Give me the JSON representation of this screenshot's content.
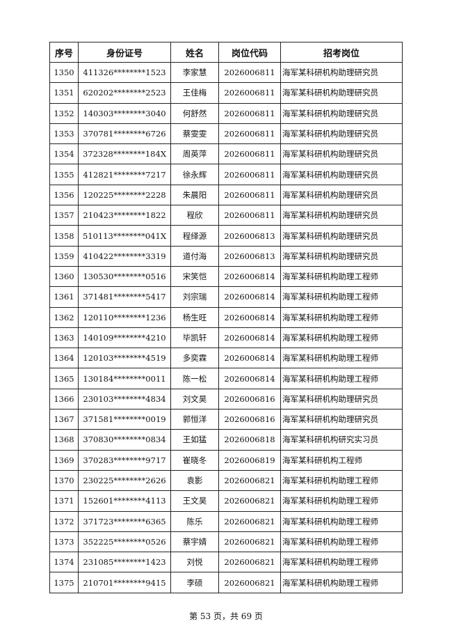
{
  "table": {
    "headers": [
      "序号",
      "身份证号",
      "姓名",
      "岗位代码",
      "招考岗位"
    ],
    "rows": [
      [
        "1350",
        "411326********1523",
        "李家慧",
        "2026006811",
        "海军某科研机构助理研究员"
      ],
      [
        "1351",
        "620202********2523",
        "王佳梅",
        "2026006811",
        "海军某科研机构助理研究员"
      ],
      [
        "1352",
        "140303********3040",
        "何舒然",
        "2026006811",
        "海军某科研机构助理研究员"
      ],
      [
        "1353",
        "370781********6726",
        "蔡雯雯",
        "2026006811",
        "海军某科研机构助理研究员"
      ],
      [
        "1354",
        "372328********184X",
        "周英萍",
        "2026006811",
        "海军某科研机构助理研究员"
      ],
      [
        "1355",
        "412821********7217",
        "徐永辉",
        "2026006811",
        "海军某科研机构助理研究员"
      ],
      [
        "1356",
        "120225********2228",
        "朱晨阳",
        "2026006811",
        "海军某科研机构助理研究员"
      ],
      [
        "1357",
        "210423********1822",
        "程欣",
        "2026006811",
        "海军某科研机构助理研究员"
      ],
      [
        "1358",
        "510113********041X",
        "程绎源",
        "2026006813",
        "海军某科研机构助理研究员"
      ],
      [
        "1359",
        "410422********3319",
        "道付海",
        "2026006813",
        "海军某科研机构助理研究员"
      ],
      [
        "1360",
        "130530********0516",
        "宋笑恺",
        "2026006814",
        "海军某科研机构助理工程师"
      ],
      [
        "1361",
        "371481********5417",
        "刘宗瑞",
        "2026006814",
        "海军某科研机构助理工程师"
      ],
      [
        "1362",
        "120110********1236",
        "杨生旺",
        "2026006814",
        "海军某科研机构助理工程师"
      ],
      [
        "1363",
        "140109********4210",
        "毕凯轩",
        "2026006814",
        "海军某科研机构助理工程师"
      ],
      [
        "1364",
        "120103********4519",
        "多奕霖",
        "2026006814",
        "海军某科研机构助理工程师"
      ],
      [
        "1365",
        "130184********0011",
        "陈一松",
        "2026006814",
        "海军某科研机构助理工程师"
      ],
      [
        "1366",
        "230103********4834",
        "刘文昊",
        "2026006816",
        "海军某科研机构助理研究员"
      ],
      [
        "1367",
        "371581********0019",
        "郭恒洋",
        "2026006816",
        "海军某科研机构助理研究员"
      ],
      [
        "1368",
        "370830********0834",
        "王如猛",
        "2026006818",
        "海军某科研机构研究实习员"
      ],
      [
        "1369",
        "370283********9717",
        "崔晓冬",
        "2026006819",
        "海军某科研机构工程师"
      ],
      [
        "1370",
        "230225********2626",
        "袁影",
        "2026006821",
        "海军某科研机构助理工程师"
      ],
      [
        "1371",
        "152601********4113",
        "王文昊",
        "2026006821",
        "海军某科研机构助理工程师"
      ],
      [
        "1372",
        "371723********6365",
        "陈乐",
        "2026006821",
        "海军某科研机构助理工程师"
      ],
      [
        "1373",
        "352225********0526",
        "蔡宇婧",
        "2026006821",
        "海军某科研机构助理工程师"
      ],
      [
        "1374",
        "231085********1423",
        "刘悦",
        "2026006821",
        "海军某科研机构助理工程师"
      ],
      [
        "1375",
        "210701********9415",
        "李硕",
        "2026006821",
        "海军某科研机构助理工程师"
      ]
    ]
  },
  "footer": {
    "page_text": "第 53 页，共 69 页"
  }
}
